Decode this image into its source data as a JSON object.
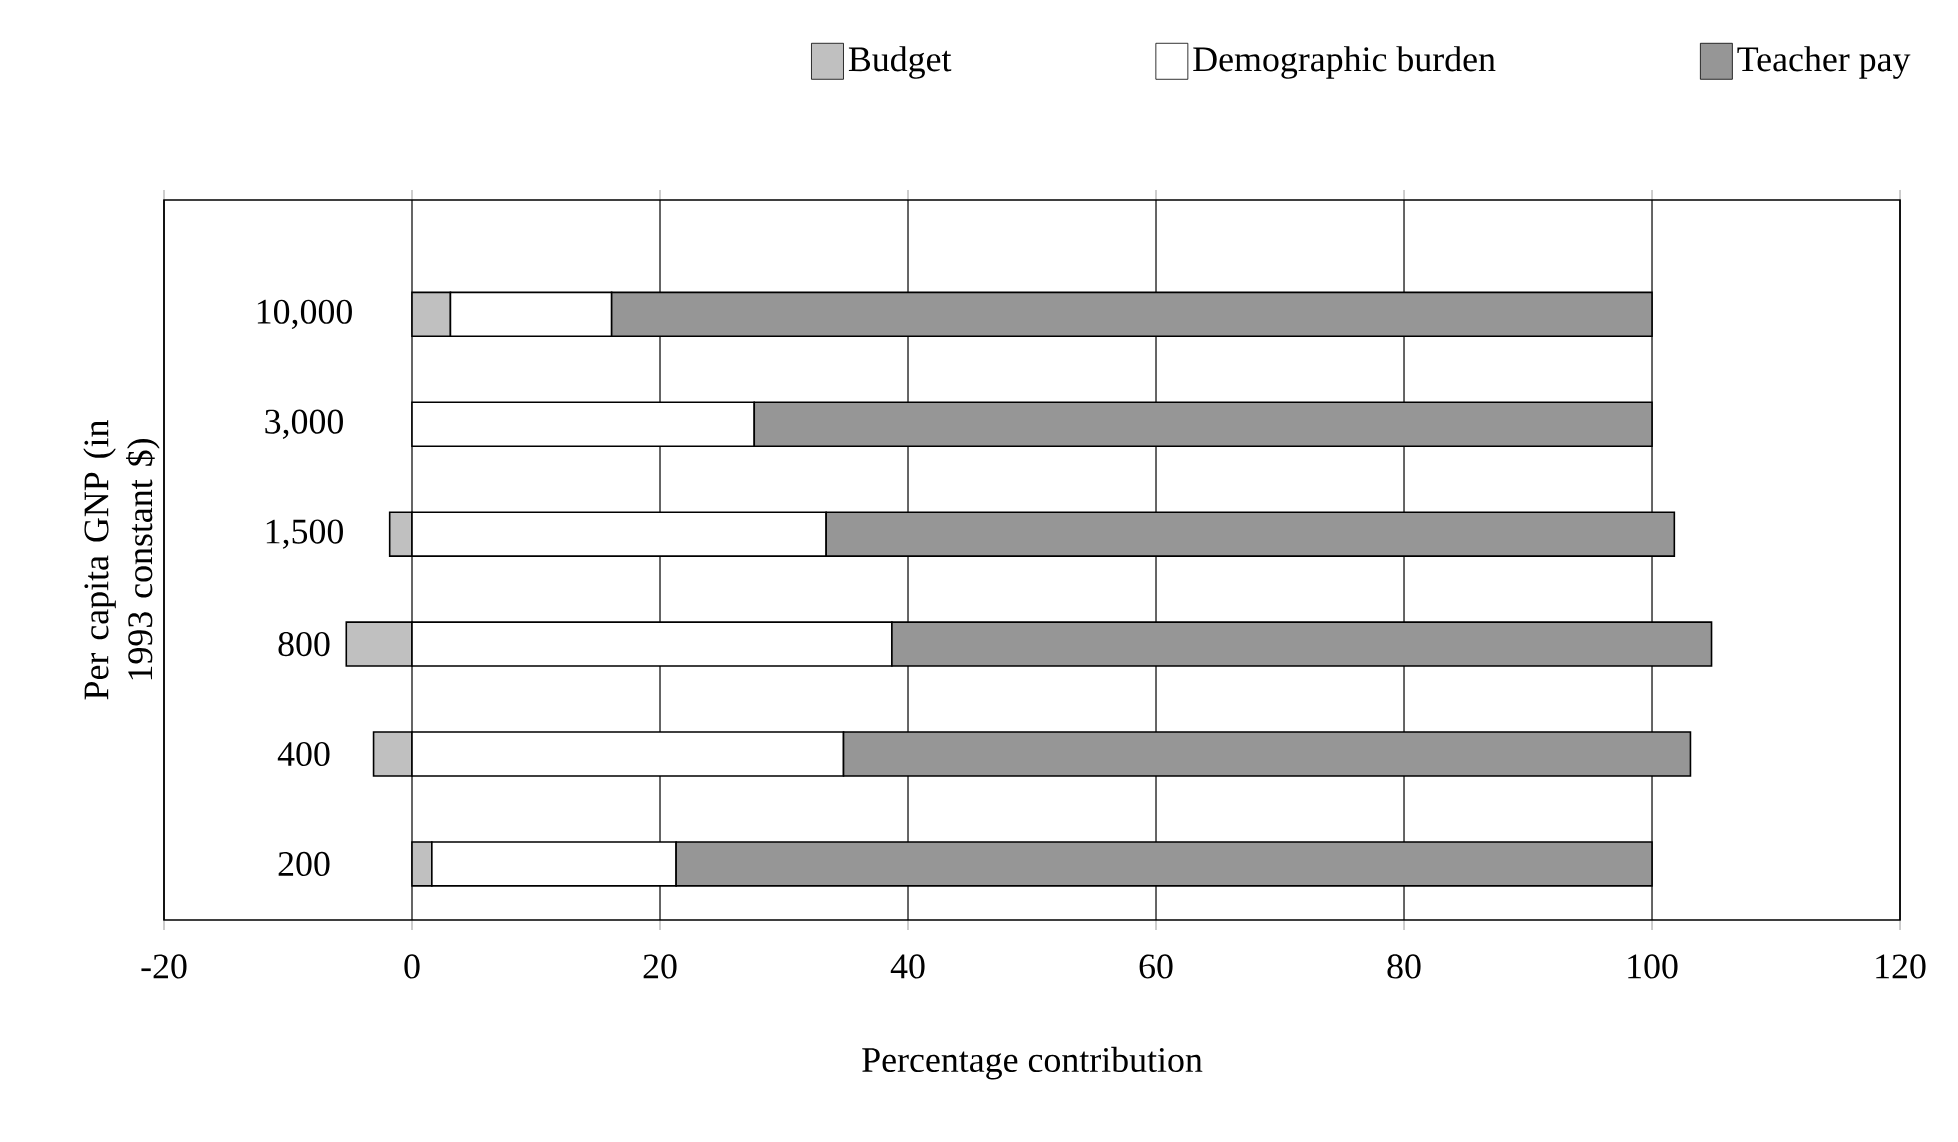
{
  "chart_data": {
    "type": "bar",
    "orientation": "horizontal",
    "stacked": true,
    "categories": [
      "10,000",
      "3,000",
      "1,500",
      "800",
      "400",
      "200"
    ],
    "series": [
      {
        "name": "Budget",
        "color": "#c0c0c0",
        "values": [
          3.1,
          0,
          -1.8,
          -5.3,
          -3.1,
          1.6
        ]
      },
      {
        "name": "Demographic burden",
        "color": "#ffffff",
        "values": [
          13.0,
          27.6,
          33.4,
          38.7,
          34.8,
          19.7
        ]
      },
      {
        "name": "Teacher pay",
        "color": "#969696",
        "values": [
          83.9,
          72.4,
          68.4,
          66.1,
          68.3,
          78.7
        ]
      }
    ],
    "xlabel": "Percentage contribution",
    "ylabel": "Per capita GNP (in 1993 constant $)",
    "xlim": [
      -20,
      120
    ],
    "xticks": [
      -20,
      0,
      20,
      40,
      60,
      80,
      100,
      120
    ],
    "grid": "x",
    "legend": "top"
  }
}
